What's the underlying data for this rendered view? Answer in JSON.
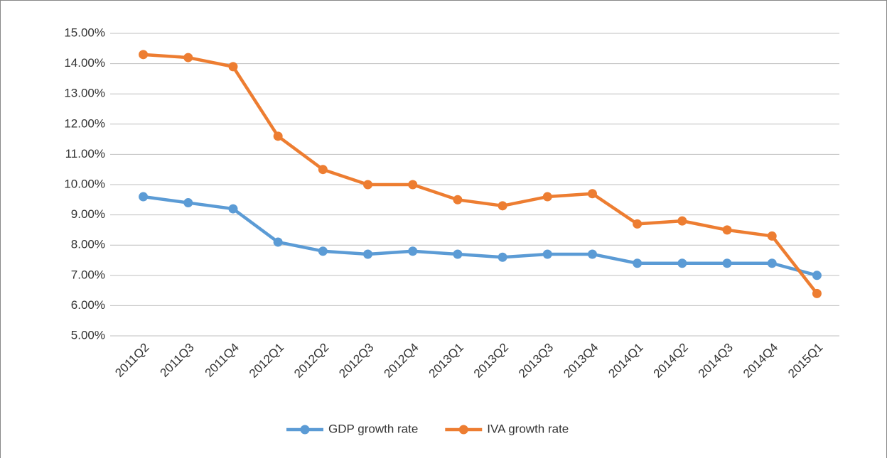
{
  "chart_data": {
    "type": "line",
    "categories": [
      "2011Q2",
      "2011Q3",
      "2011Q4",
      "2012Q1",
      "2012Q2",
      "2012Q3",
      "2012Q4",
      "2013Q1",
      "2013Q2",
      "2013Q3",
      "2013Q4",
      "2014Q1",
      "2014Q2",
      "2014Q3",
      "2014Q4",
      "2015Q1"
    ],
    "series": [
      {
        "name": "GDP growth rate",
        "color": "#5b9bd5",
        "values": [
          9.6,
          9.4,
          9.2,
          8.1,
          7.8,
          7.7,
          7.8,
          7.7,
          7.6,
          7.7,
          7.7,
          7.4,
          7.4,
          7.4,
          7.4,
          7.0
        ]
      },
      {
        "name": "IVA growth rate",
        "color": "#ed7d31",
        "values": [
          14.3,
          14.2,
          13.9,
          11.6,
          10.5,
          10.0,
          10.0,
          9.5,
          9.3,
          9.6,
          9.7,
          8.7,
          8.8,
          8.5,
          8.3,
          6.4
        ]
      }
    ],
    "ylim": [
      5,
      15
    ],
    "yticks": [
      {
        "value": 5,
        "label": "5.00%"
      },
      {
        "value": 6,
        "label": "6.00%"
      },
      {
        "value": 7,
        "label": "7.00%"
      },
      {
        "value": 8,
        "label": "8.00%"
      },
      {
        "value": 9,
        "label": "9.00%"
      },
      {
        "value": 10,
        "label": "10.00%"
      },
      {
        "value": 11,
        "label": "11.00%"
      },
      {
        "value": 12,
        "label": "12.00%"
      },
      {
        "value": 13,
        "label": "13.00%"
      },
      {
        "value": 14,
        "label": "14.00%"
      },
      {
        "value": 15,
        "label": "15.00%"
      }
    ],
    "grid": true,
    "legend": "bottom"
  }
}
